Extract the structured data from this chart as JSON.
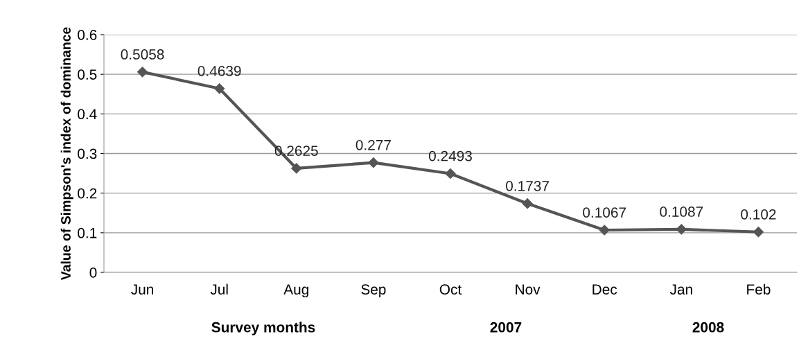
{
  "chart_data": {
    "type": "line",
    "xlabel": "Survey months",
    "ylabel": "Value of Simpson's index of dominance",
    "categories": [
      "Jun",
      "Jul",
      "Aug",
      "Sep",
      "Oct",
      "Nov",
      "Dec",
      "Jan",
      "Feb"
    ],
    "series": [
      {
        "color": "#555555",
        "values": [
          0.5058,
          0.4639,
          0.2625,
          0.277,
          0.2493,
          0.1737,
          0.1067,
          0.1087,
          0.102
        ]
      }
    ],
    "ylim": [
      0,
      0.6
    ],
    "yticks": [
      0,
      0.1,
      0.2,
      0.3,
      0.4,
      0.5,
      0.6
    ],
    "grid": "y",
    "marker": "diamond",
    "line_style": "solid",
    "data_labels": true,
    "legend": false,
    "annotations": [
      "2007",
      "2008"
    ]
  }
}
